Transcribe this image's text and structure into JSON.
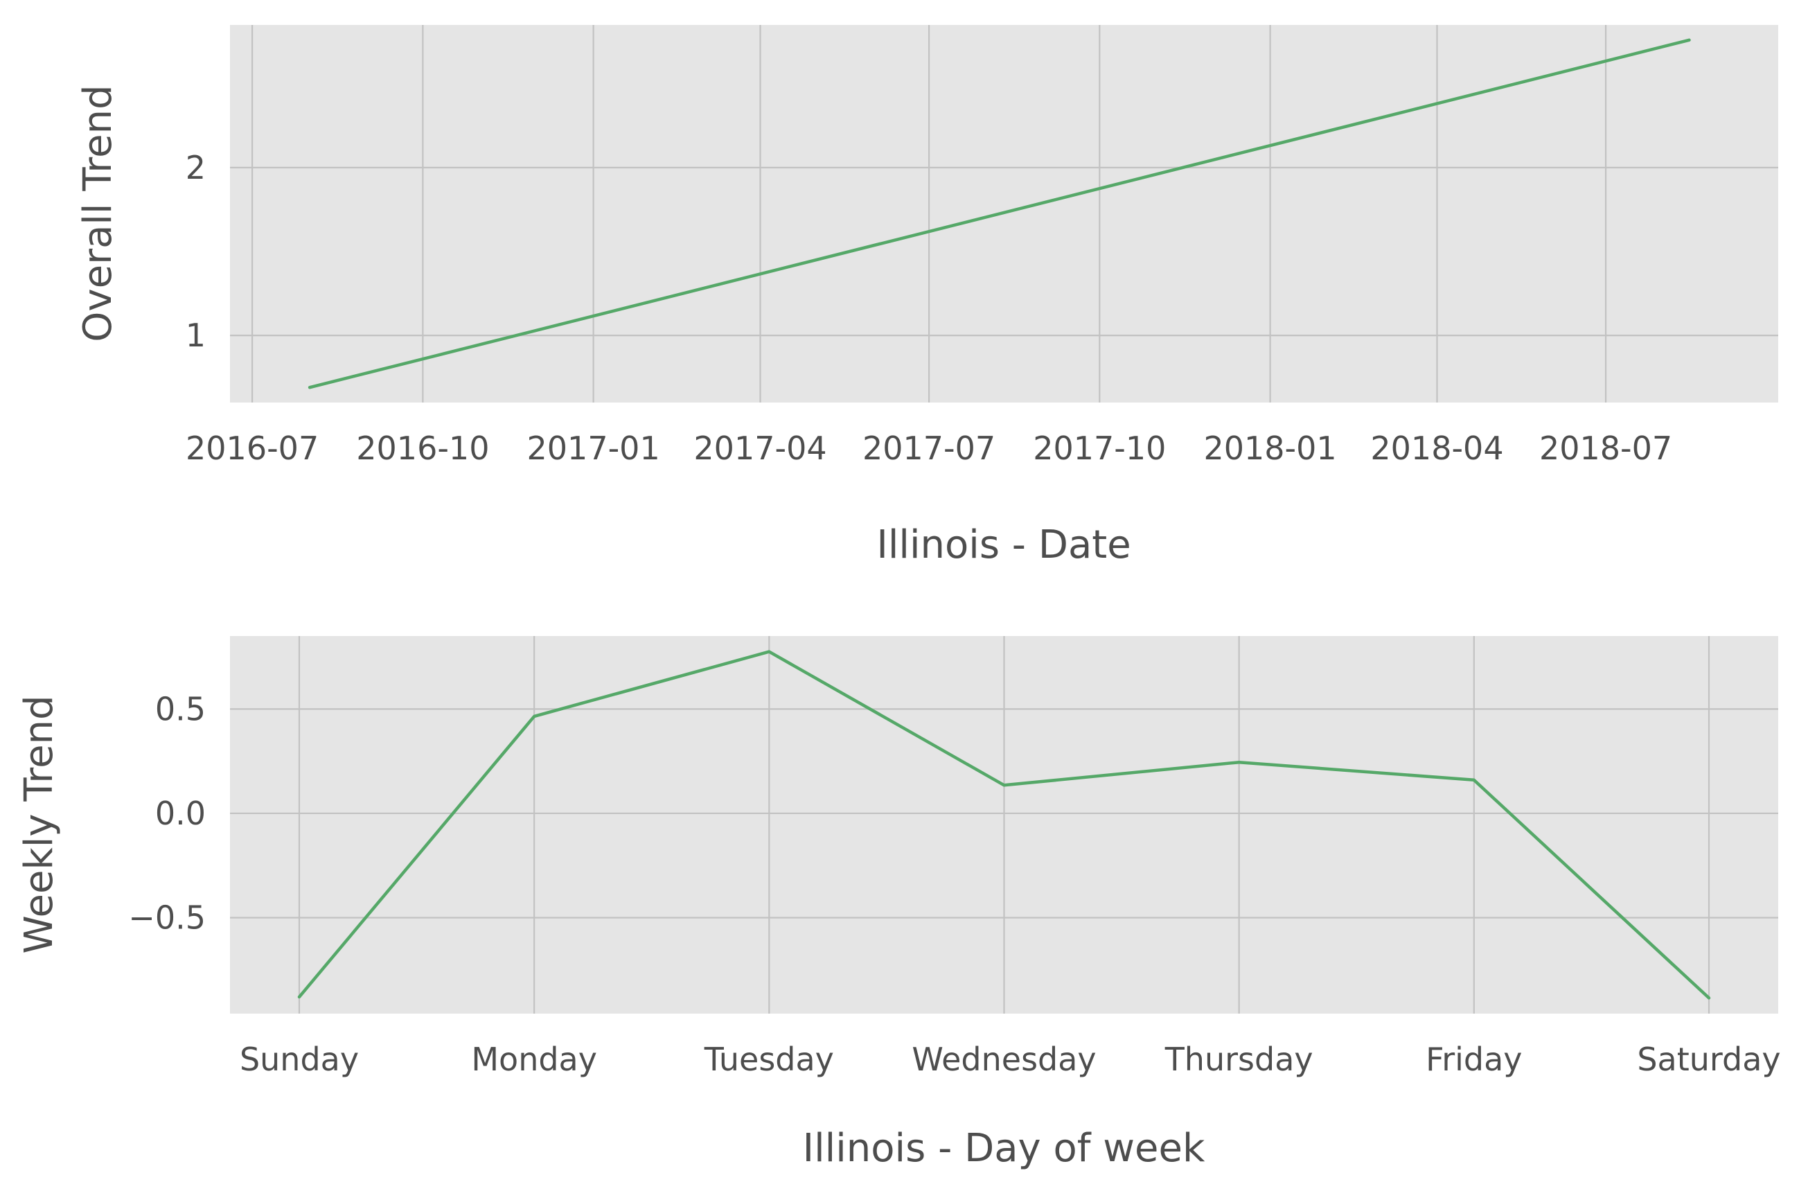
{
  "chart_data": [
    {
      "type": "line",
      "title": "",
      "xlabel": "Illinois - Date",
      "ylabel": "Overall Trend",
      "x_tick_labels": [
        "2016-07",
        "2016-10",
        "2017-01",
        "2017-04",
        "2017-07",
        "2017-10",
        "2018-01",
        "2018-04",
        "2018-07"
      ],
      "x_ticks": [
        "2016-07-01",
        "2016-10-01",
        "2017-01-01",
        "2017-04-01",
        "2017-07-01",
        "2017-10-01",
        "2018-01-01",
        "2018-04-01",
        "2018-07-01"
      ],
      "y_tick_labels": [
        "1",
        "2"
      ],
      "y_ticks": [
        1,
        2
      ],
      "xlim": [
        "2016-06-19",
        "2018-10-02"
      ],
      "ylim": [
        0.6,
        2.85
      ],
      "x": [
        "2016-08-01",
        "2018-08-15"
      ],
      "values": [
        0.69,
        2.76
      ],
      "grid": true,
      "line_color": "#55a868",
      "panel_color": "#e5e5e5"
    },
    {
      "type": "line",
      "title": "",
      "xlabel": "Illinois - Day of week",
      "ylabel": "Weekly Trend",
      "categories": [
        "Sunday",
        "Monday",
        "Tuesday",
        "Wednesday",
        "Thursday",
        "Friday",
        "Saturday"
      ],
      "y_tick_labels": [
        "−0.5",
        "0.0",
        "0.5"
      ],
      "y_ticks": [
        -0.5,
        0.0,
        0.5
      ],
      "ylim": [
        -0.96,
        0.85
      ],
      "values": [
        -0.88,
        0.465,
        0.775,
        0.135,
        0.245,
        0.16,
        -0.885
      ],
      "grid": true,
      "line_color": "#55a868",
      "panel_color": "#e5e5e5"
    }
  ]
}
